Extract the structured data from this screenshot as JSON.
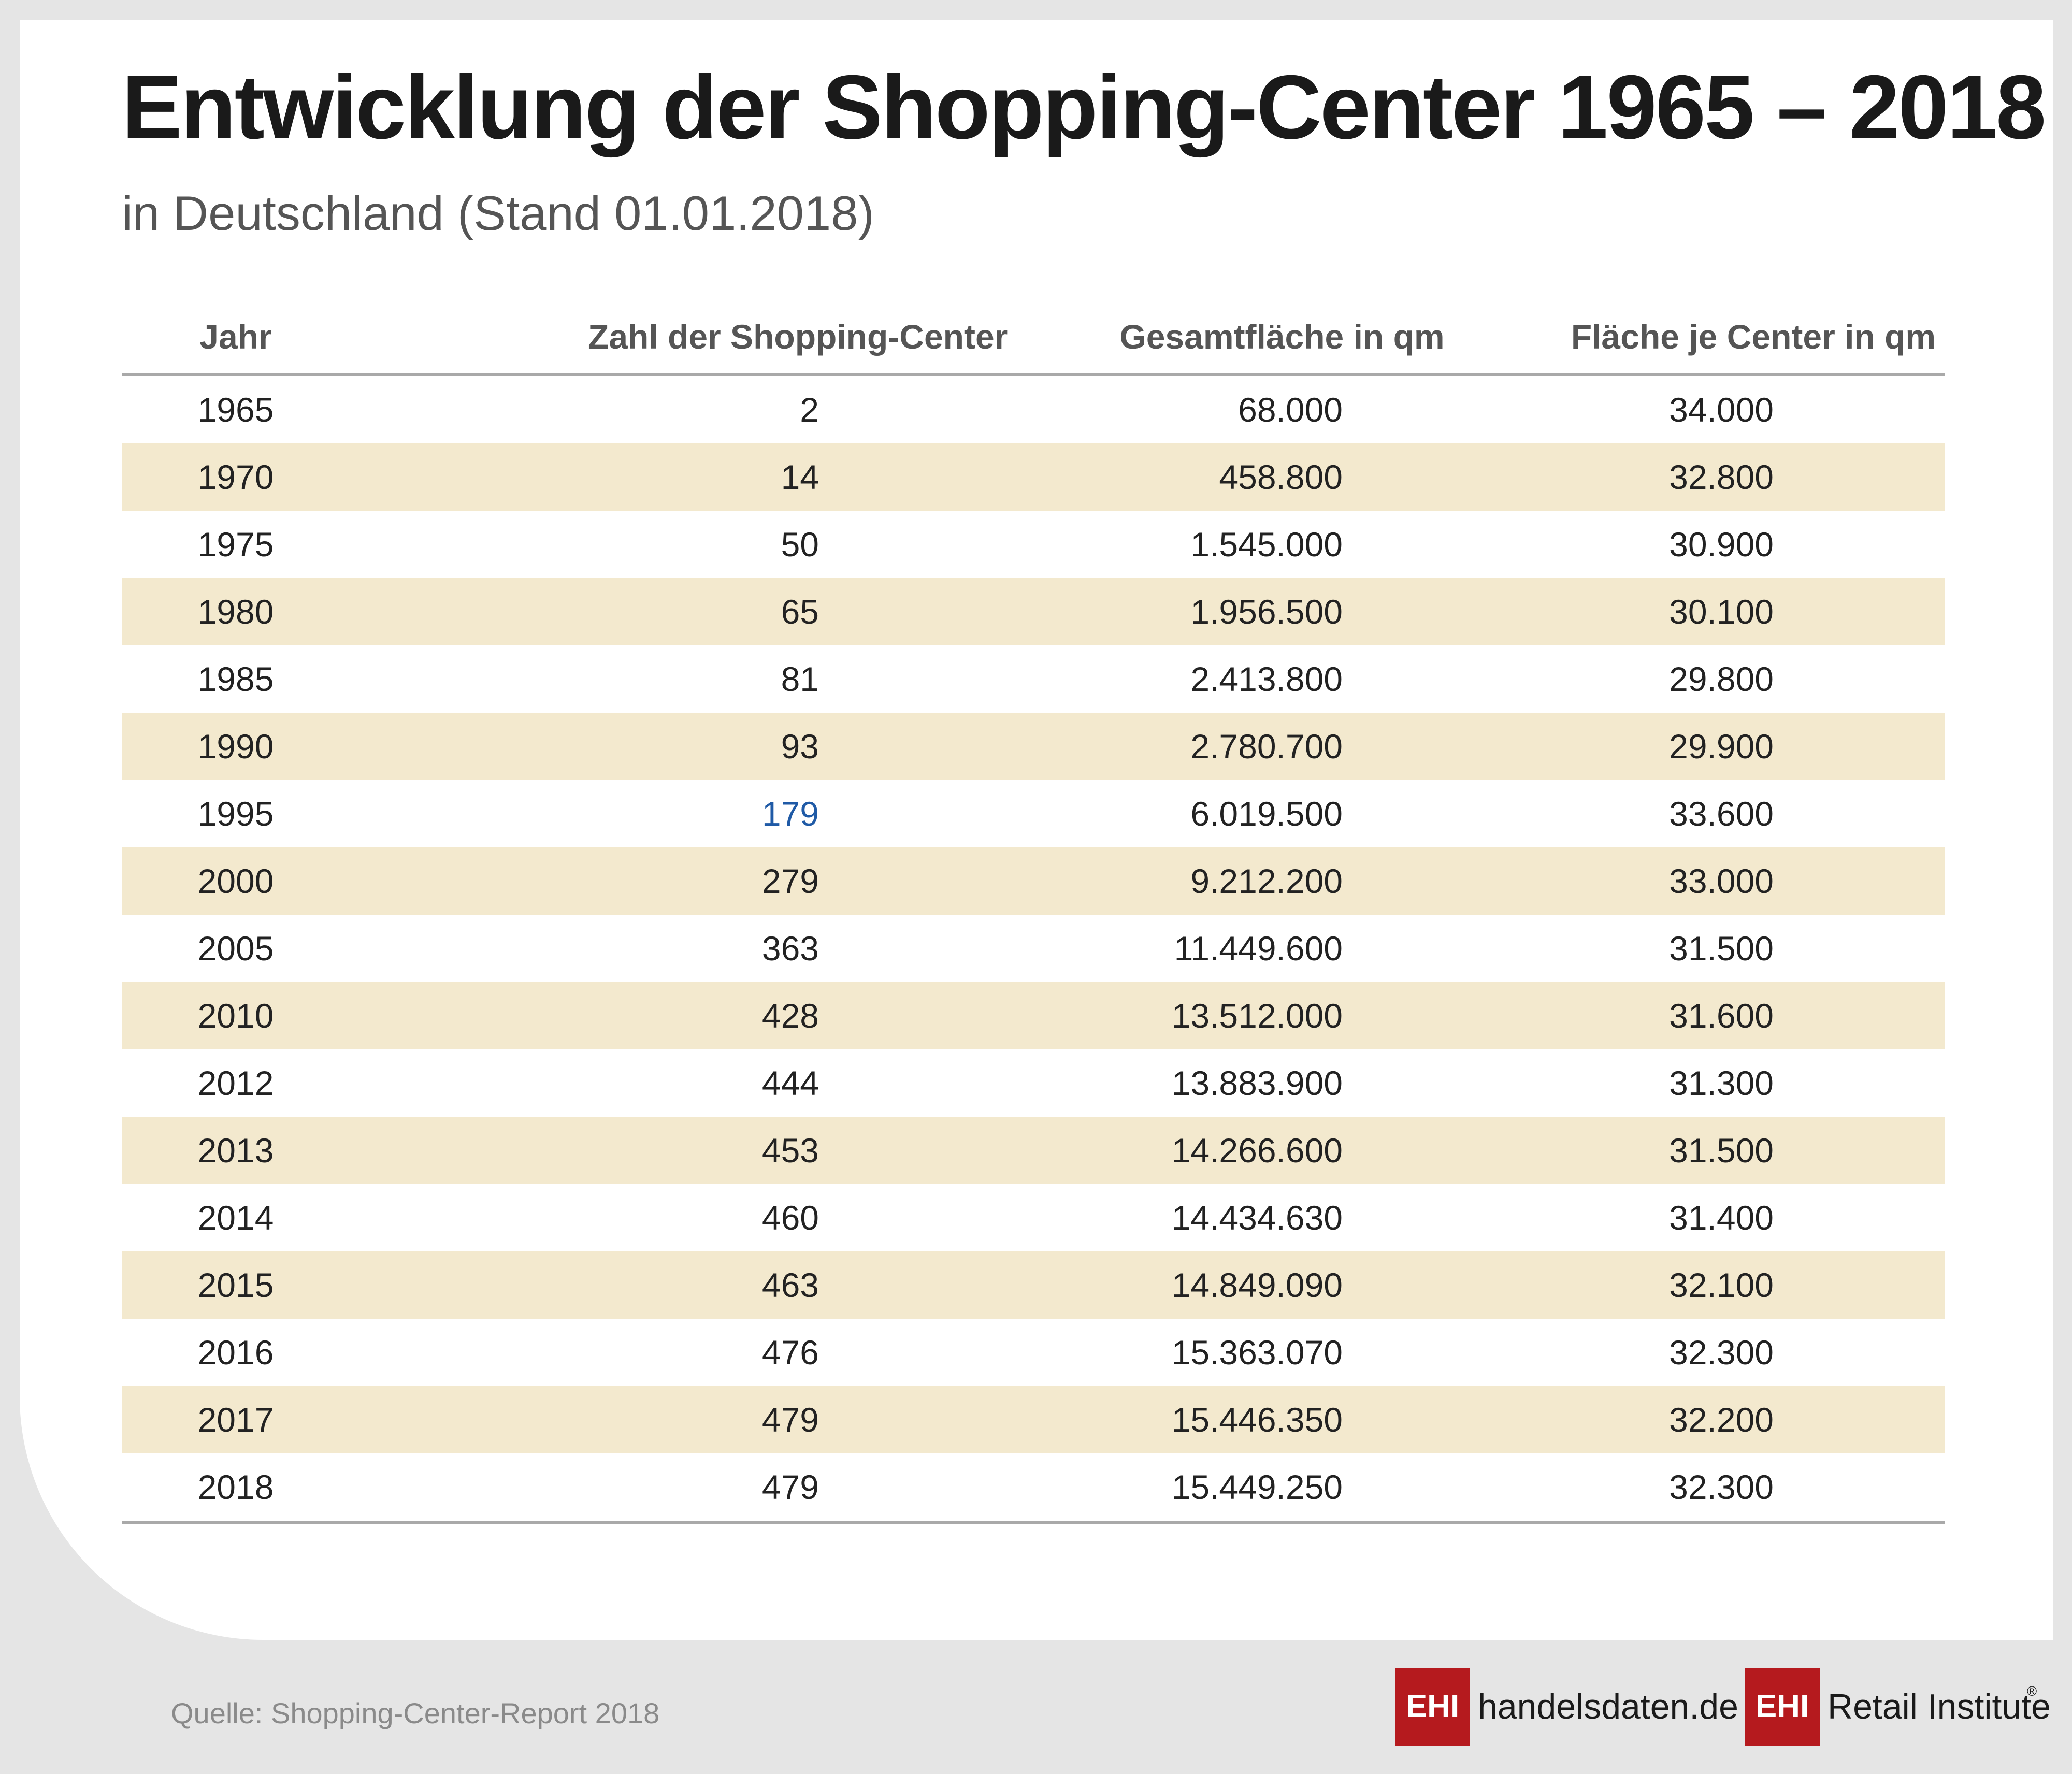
{
  "title": "Entwicklung der Shopping-Center 1965 – 2018",
  "subtitle": "in Deutschland (Stand 01.01.2018)",
  "columns": [
    "Jahr",
    "Zahl der Shopping-Center",
    "Gesamtfläche in qm",
    "Fläche je Center in qm"
  ],
  "colors": {
    "alt_row": "#f3e9ce",
    "highlight_text": "#1f5aa6",
    "brand_red": "#b51a1e"
  },
  "chart_data": {
    "type": "table",
    "title": "Entwicklung der Shopping-Center 1965 – 2018",
    "subtitle": "in Deutschland (Stand 01.01.2018)",
    "columns": [
      "Jahr",
      "Zahl der Shopping-Center",
      "Gesamtfläche in qm",
      "Fläche je Center in qm"
    ],
    "rows": [
      [
        "1965",
        "2",
        "68.000",
        "34.000"
      ],
      [
        "1970",
        "14",
        "458.800",
        "32.800"
      ],
      [
        "1975",
        "50",
        "1.545.000",
        "30.900"
      ],
      [
        "1980",
        "65",
        "1.956.500",
        "30.100"
      ],
      [
        "1985",
        "81",
        "2.413.800",
        "29.800"
      ],
      [
        "1990",
        "93",
        "2.780.700",
        "29.900"
      ],
      [
        "1995",
        "179",
        "6.019.500",
        "33.600"
      ],
      [
        "2000",
        "279",
        "9.212.200",
        "33.000"
      ],
      [
        "2005",
        "363",
        "11.449.600",
        "31.500"
      ],
      [
        "2010",
        "428",
        "13.512.000",
        "31.600"
      ],
      [
        "2012",
        "444",
        "13.883.900",
        "31.300"
      ],
      [
        "2013",
        "453",
        "14.266.600",
        "31.500"
      ],
      [
        "2014",
        "460",
        "14.434.630",
        "31.400"
      ],
      [
        "2015",
        "463",
        "14.849.090",
        "32.100"
      ],
      [
        "2016",
        "476",
        "15.363.070",
        "32.300"
      ],
      [
        "2017",
        "479",
        "15.446.350",
        "32.200"
      ],
      [
        "2018",
        "479",
        "15.449.250",
        "32.300"
      ]
    ],
    "highlighted_cell": {
      "row": 6,
      "column": 1
    }
  },
  "footer": {
    "source": "Quelle: Shopping-Center-Report 2018",
    "logo1_box": "EHI",
    "logo1_text": "handelsdaten.de",
    "logo2_box": "EHI",
    "logo2_text": "Retail Institute",
    "logo2_reg": "®"
  }
}
